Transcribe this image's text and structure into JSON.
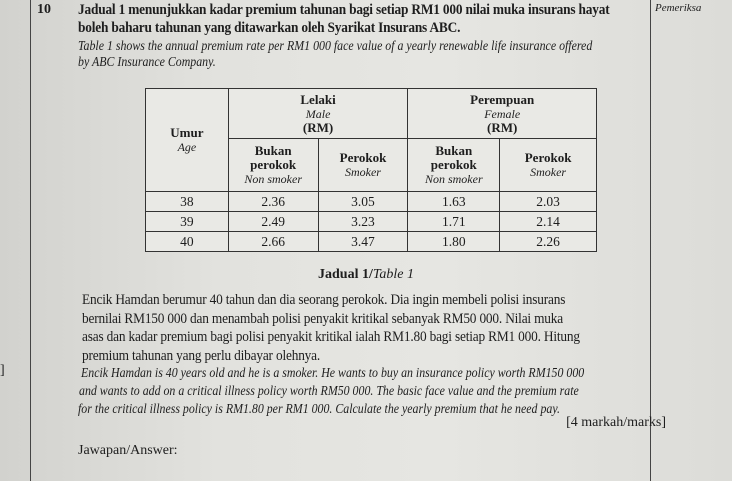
{
  "question": {
    "number": "10",
    "ms_lines": [
      "Jadual 1 menunjukkan kadar premium tahunan bagi setiap RM1 000 nilai muka insurans hayat",
      "boleh baharu tahunan yang ditawarkan oleh Syarikat Insurans ABC."
    ],
    "en_lines": [
      "Table 1 shows the annual premium rate per RM1 000 face value of a yearly renewable life insurance offered",
      "by ABC Insurance Company."
    ]
  },
  "margin_label": "Pemeriksa",
  "table": {
    "age_ms": "Umur",
    "age_en": "Age",
    "male_ms": "Lelaki",
    "male_en": "Male",
    "male_unit": "(RM)",
    "female_ms": "Perempuan",
    "female_en": "Female",
    "female_unit": "(RM)",
    "nonsmoker_ms_1": "Bukan",
    "nonsmoker_ms_2": "perokok",
    "nonsmoker_en": "Non smoker",
    "smoker_ms": "Perokok",
    "smoker_en": "Smoker",
    "rows": [
      {
        "age": "38",
        "m_ns": "2.36",
        "m_s": "3.05",
        "f_ns": "1.63",
        "f_s": "2.03"
      },
      {
        "age": "39",
        "m_ns": "2.49",
        "m_s": "3.23",
        "f_ns": "1.71",
        "f_s": "2.14"
      },
      {
        "age": "40",
        "m_ns": "2.66",
        "m_s": "3.47",
        "f_ns": "1.80",
        "f_s": "2.26"
      }
    ]
  },
  "caption": {
    "ms": "Jadual 1/",
    "en": "Table 1"
  },
  "problem": {
    "ms_lines": [
      "Encik Hamdan berumur 40 tahun dan dia seorang perokok. Dia ingin membeli polisi insurans",
      "bernilai RM150 000 dan menambah polisi penyakit kritikal sebanyak RM50 000. Nilai muka",
      "asas dan kadar premium bagi polisi penyakit kritikal ialah RM1.80 bagi setiap RM1 000. Hitung",
      "premium tahunan yang perlu dibayar olehnya."
    ],
    "en_lines": [
      "Encik Hamdan is 40 years old and he is a smoker. He wants to buy an insurance policy worth RM150 000",
      "and wants to add on a critical illness policy worth RM50 000. The basic face value and the premium rate",
      "for the critical illness policy is RM1.80 per RM1 000. Calculate the yearly premium that he need pay."
    ],
    "marks": "[4 markah/marks]"
  },
  "answer_label": "Jawapan/Answer:",
  "left_bracket": "]"
}
